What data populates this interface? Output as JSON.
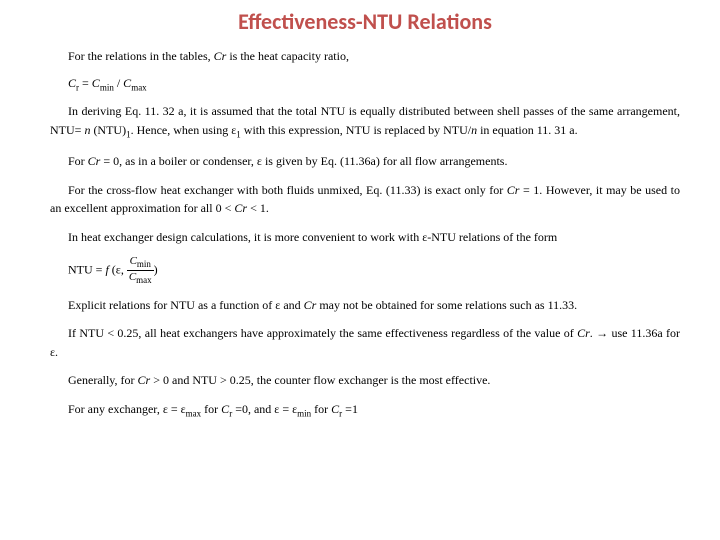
{
  "title": "Effectiveness-NTU Relations",
  "colors": {
    "title": "#c0504d",
    "text": "#000000",
    "background": "#ffffff"
  },
  "typography": {
    "title_font": "Calibri",
    "title_size_pt": 22,
    "title_weight": "bold",
    "body_font": "Georgia/Times",
    "body_size_pt": 12,
    "line_height": 1.55
  },
  "p1": {
    "a": "For the relations in the tables, ",
    "cr": "Cr",
    "b": " is the heat capacity ratio,"
  },
  "eq1_text": "Cr = Cmin / Cmax",
  "p2": {
    "a": "In deriving Eq. 11. 32 a, it is assumed that the total NTU is equally distributed between shell passes of the same arrangement, NTU= ",
    "n": "n",
    "b": " (NTU)",
    "sub1": "1",
    "c": ". Hence, when using ε",
    "sub2": "1",
    "d": " with this expression, NTU is replaced by NTU/",
    "n2": "n",
    "e": " in equation 11. 31 a."
  },
  "p3": {
    "a": "For ",
    "cr": "Cr",
    "b": " = 0, as in a boiler or condenser, ε is given by Eq. (11.36a) for all flow arrangements."
  },
  "p4": {
    "a": "For the cross-flow heat exchanger with both fluids unmixed, Eq. (11.33) is exact only for ",
    "cr": "Cr",
    "b": " = 1. However, it may be used to an excellent approximation for all 0 < ",
    "cr2": "Cr",
    "c": " < 1."
  },
  "p5": "In heat exchanger design calculations, it is more convenient to work with ε-NTU relations of the form",
  "eq2_text": "NTU = f (ε, Cmin/Cmax)",
  "p6": {
    "a": "Explicit relations for NTU as a function of ε and ",
    "cr": "Cr",
    "b": " may not be obtained for some relations such as 11.33."
  },
  "p7": {
    "a": "If NTU < 0.25, all heat exchangers have approximately the same effectiveness regardless of the value of ",
    "cr": "Cr",
    "b": ".",
    "arrow": "→",
    "c": "use 11.36a for ε."
  },
  "p8": {
    "a": "Generally, for ",
    "cr": "Cr",
    "b": " > 0 and NTU > 0.25, the counter flow exchanger is the most effective."
  },
  "p9": {
    "a": "For any exchanger, ε = ε",
    "sub1": "max",
    "b": " for ",
    "c": " =0, and ε = ε",
    "sub2": "min",
    "d": " for ",
    "e": " =1"
  }
}
